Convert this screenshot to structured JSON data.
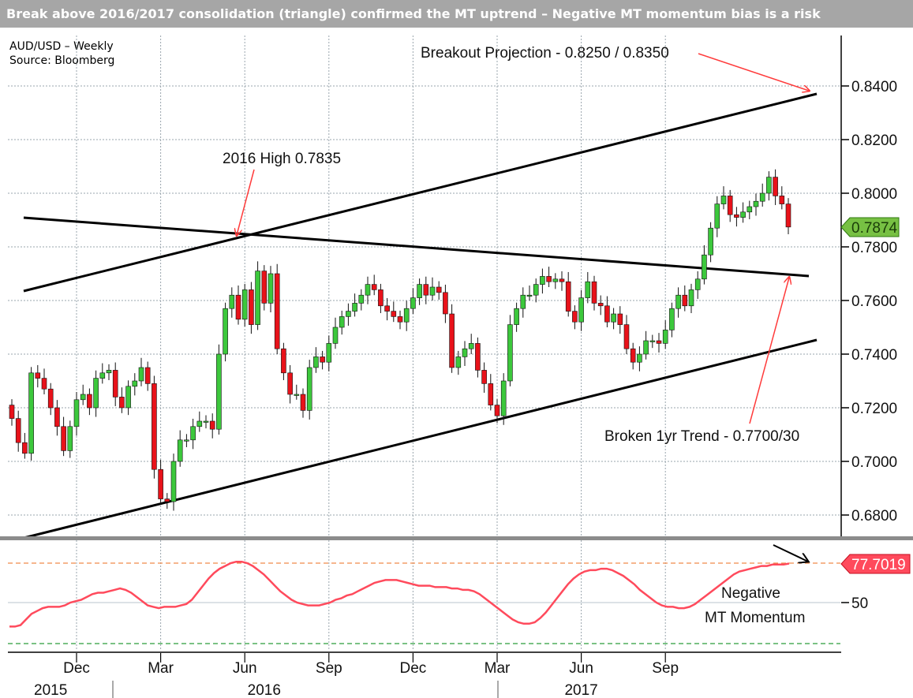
{
  "header": {
    "title": "Break above 2016/2017 consolidation (triangle) confirmed the MT uptrend – Negative MT momentum bias is a risk",
    "subtitle_line1": "AUD/USD – Weekly",
    "subtitle_line2": "Source: Bloomberg"
  },
  "chart_data": [
    {
      "type": "candlestick",
      "title": "",
      "x_ticks": [
        {
          "label": "Dec",
          "week": 10
        },
        {
          "label": "Mar",
          "week": 23
        },
        {
          "label": "Jun",
          "week": 36
        },
        {
          "label": "Sep",
          "week": 49
        },
        {
          "label": "Dec",
          "week": 62
        },
        {
          "label": "Mar",
          "week": 75
        },
        {
          "label": "Jun",
          "week": 88
        },
        {
          "label": "Sep",
          "week": 101
        }
      ],
      "year_labels": [
        {
          "label": "2015",
          "week": 6
        },
        {
          "label": "2016",
          "week": 39
        },
        {
          "label": "2017",
          "week": 88
        }
      ],
      "y_ticks": [
        "0.6800",
        "0.7000",
        "0.7200",
        "0.7400",
        "0.7600",
        "0.7800",
        "0.8000",
        "0.8200",
        "0.8400"
      ],
      "ylim": [
        0.667,
        0.861
      ],
      "last_price_label": "0.7874",
      "last_price": 0.7874,
      "candle_close": [
        0.716,
        0.707,
        0.703,
        0.733,
        0.731,
        0.727,
        0.72,
        0.713,
        0.704,
        0.713,
        0.723,
        0.725,
        0.72,
        0.731,
        0.733,
        0.734,
        0.724,
        0.72,
        0.728,
        0.73,
        0.735,
        0.729,
        0.697,
        0.686,
        0.685,
        0.7,
        0.708,
        0.708,
        0.713,
        0.715,
        0.715,
        0.712,
        0.74,
        0.757,
        0.762,
        0.753,
        0.764,
        0.751,
        0.771,
        0.759,
        0.77,
        0.742,
        0.733,
        0.725,
        0.725,
        0.719,
        0.735,
        0.739,
        0.737,
        0.744,
        0.75,
        0.754,
        0.756,
        0.759,
        0.762,
        0.766,
        0.764,
        0.758,
        0.756,
        0.754,
        0.752,
        0.757,
        0.761,
        0.766,
        0.762,
        0.765,
        0.763,
        0.755,
        0.735,
        0.739,
        0.742,
        0.744,
        0.734,
        0.729,
        0.721,
        0.717,
        0.73,
        0.751,
        0.757,
        0.762,
        0.762,
        0.766,
        0.769,
        0.767,
        0.768,
        0.767,
        0.756,
        0.752,
        0.761,
        0.767,
        0.759,
        0.758,
        0.752,
        0.755,
        0.751,
        0.742,
        0.737,
        0.74,
        0.745,
        0.745,
        0.744,
        0.749,
        0.757,
        0.762,
        0.758,
        0.764,
        0.768,
        0.777,
        0.787,
        0.796,
        0.799,
        0.792,
        0.791,
        0.793,
        0.795,
        0.797,
        0.8,
        0.806,
        0.799,
        0.796,
        0.7874
      ],
      "annotations": [
        "Breakout Projection - 0.8250 / 0.8350",
        "2016 High 0.7835",
        "Broken 1yr Trend - 0.7700/30"
      ]
    },
    {
      "type": "line",
      "title": "",
      "y_ticks": [
        "50"
      ],
      "last_value_label": "77.7019",
      "annotations": [
        "Negative",
        "MT Momentum"
      ],
      "series": [
        {
          "values": [
            33,
            33,
            34,
            38,
            42,
            44,
            46,
            47,
            47,
            47,
            48,
            50,
            51,
            52,
            54,
            56,
            57,
            57,
            58,
            59,
            60,
            59,
            57,
            54,
            51,
            48,
            47,
            46,
            47,
            47,
            47,
            48,
            49,
            52,
            57,
            62,
            67,
            71,
            74,
            76,
            78,
            79,
            79,
            78,
            76,
            73,
            70,
            66,
            62,
            58,
            55,
            52,
            50,
            49,
            48,
            48,
            48,
            49,
            50,
            52,
            53,
            55,
            56,
            58,
            60,
            62,
            64,
            65,
            66,
            66,
            66,
            65,
            64,
            63,
            62,
            62,
            62,
            61,
            61,
            61,
            60,
            60,
            59,
            59,
            58,
            56,
            53,
            50,
            47,
            44,
            41,
            38,
            36,
            35,
            35,
            36,
            39,
            43,
            48,
            53,
            58,
            63,
            67,
            70,
            72,
            73,
            73,
            74,
            74,
            73,
            71,
            69,
            66,
            63,
            59,
            56,
            53,
            50,
            48,
            47,
            47,
            46,
            46,
            47,
            49,
            52,
            55,
            58,
            61,
            64,
            67,
            70,
            72,
            73,
            74,
            75,
            76,
            76,
            77,
            77,
            77,
            77.7
          ]
        }
      ]
    }
  ]
}
